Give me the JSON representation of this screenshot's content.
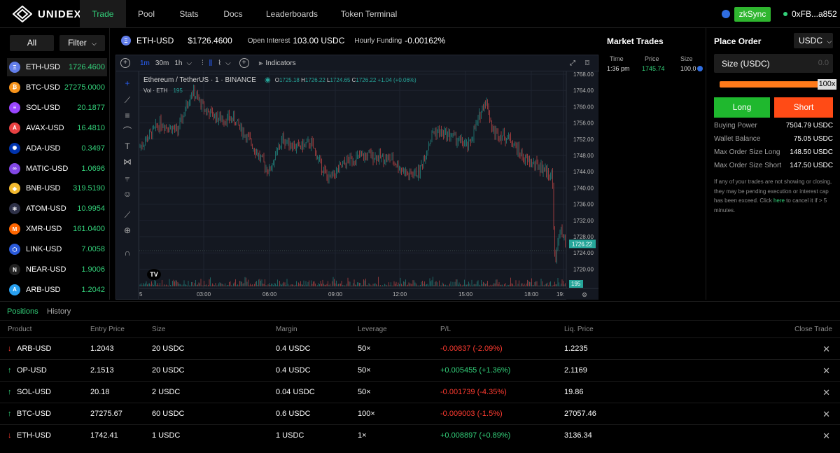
{
  "nav": {
    "brand": "UNIDEX",
    "items": [
      {
        "label": "Trade",
        "active": true
      },
      {
        "label": "Pool"
      },
      {
        "label": "Stats"
      },
      {
        "label": "Docs"
      },
      {
        "label": "Leaderboards"
      },
      {
        "label": "Token Terminal"
      }
    ],
    "network": "zkSync",
    "wallet": "0xFB...a852"
  },
  "sidebar": {
    "all_label": "All",
    "filter_label": "Filter",
    "markets": [
      {
        "name": "ETH-USD",
        "price": "1726.4600",
        "color": "#627eea",
        "sym": "Ξ"
      },
      {
        "name": "BTC-USD",
        "price": "27275.0000",
        "color": "#f7931a",
        "sym": "₿"
      },
      {
        "name": "SOL-USD",
        "price": "20.1877",
        "color": "#9945ff",
        "sym": "≡"
      },
      {
        "name": "AVAX-USD",
        "price": "16.4810",
        "color": "#e84142",
        "sym": "A"
      },
      {
        "name": "ADA-USD",
        "price": "0.3497",
        "color": "#0033ad",
        "sym": "✺"
      },
      {
        "name": "MATIC-USD",
        "price": "1.0696",
        "color": "#8247e5",
        "sym": "∞"
      },
      {
        "name": "BNB-USD",
        "price": "319.5190",
        "color": "#f3ba2f",
        "sym": "◆"
      },
      {
        "name": "ATOM-USD",
        "price": "10.9954",
        "color": "#2e3148",
        "sym": "⚛"
      },
      {
        "name": "XMR-USD",
        "price": "161.0400",
        "color": "#ff6600",
        "sym": "M"
      },
      {
        "name": "LINK-USD",
        "price": "7.0058",
        "color": "#2a5ada",
        "sym": "⬡"
      },
      {
        "name": "NEAR-USD",
        "price": "1.9006",
        "color": "#222222",
        "sym": "N"
      },
      {
        "name": "ARB-USD",
        "price": "1.2042",
        "color": "#28a0f0",
        "sym": "A"
      }
    ]
  },
  "ticker": {
    "pair": "ETH-USD",
    "price": "$1726.4600",
    "oi_label": "Open Interest",
    "oi_value": "103.00 USDC",
    "funding_label": "Hourly Funding",
    "funding_value": "-0.00162%"
  },
  "chart": {
    "intervals": [
      "1m",
      "30m",
      "1h"
    ],
    "indicators_label": "Indicators",
    "legend_title": "Ethereum / TetherUS · 1 · BINANCE",
    "ohlc": {
      "o": "1725.18",
      "h": "1726.22",
      "l": "1724.65",
      "c": "1726.22",
      "chg": "+1.04 (+0.06%)"
    },
    "vol_label": "Vol · ETH",
    "vol_value": "195",
    "price_ticks": [
      "1768.00",
      "1764.00",
      "1760.00",
      "1756.00",
      "1752.00",
      "1748.00",
      "1744.00",
      "1740.00",
      "1736.00",
      "1732.00",
      "1728.00",
      "1724.00",
      "1720.00"
    ],
    "time_ticks": [
      "5",
      "03:00",
      "06:00",
      "09:00",
      "12:00",
      "15:00",
      "18:00",
      "19:"
    ],
    "current_price": "1726.22",
    "current_vol": "195",
    "up_color": "#26a69a",
    "down_color": "#ef5350"
  },
  "market_trades": {
    "title": "Market Trades",
    "headers": [
      "Time",
      "Price",
      "Size"
    ],
    "rows": [
      {
        "time": "1:36 pm",
        "price": "1745.74",
        "size": "100.0"
      }
    ]
  },
  "place_order": {
    "title": "Place Order",
    "currency": "USDC",
    "size_label": "Size (USDC)",
    "size_placeholder": "0.0",
    "leverage": "100x",
    "leverage_fraction": 1.0,
    "long_label": "Long",
    "short_label": "Short",
    "info": [
      {
        "k": "Buying Power",
        "v": "7504.79 USDC"
      },
      {
        "k": "Wallet Balance",
        "v": "75.05 USDC"
      },
      {
        "k": "Max Order Size Long",
        "v": "148.50 USDC"
      },
      {
        "k": "Max Order Size Short",
        "v": "147.50 USDC"
      }
    ],
    "note_before": "If any of your trades are not showing or closing, they may be pending execution or interest cap has been exceed. Click ",
    "note_link": "here",
    "note_after": " to cancel it if > 5 minutes."
  },
  "positions": {
    "tab_positions": "Positions",
    "tab_history": "History",
    "headers": [
      "Product",
      "Entry Price",
      "Size",
      "Margin",
      "Leverage",
      "P/L",
      "Liq. Price",
      "Close Trade"
    ],
    "rows": [
      {
        "dir": "down",
        "product": "ARB-USD",
        "entry": "1.2043",
        "size": "20 USDC",
        "margin": "0.4 USDC",
        "leverage": "50×",
        "pl": "-0.00837 (-2.09%)",
        "pl_pos": false,
        "liq": "1.2235"
      },
      {
        "dir": "up",
        "product": "OP-USD",
        "entry": "2.1513",
        "size": "20 USDC",
        "margin": "0.4 USDC",
        "leverage": "50×",
        "pl": "+0.005455 (+1.36%)",
        "pl_pos": true,
        "liq": "2.1169"
      },
      {
        "dir": "up",
        "product": "SOL-USD",
        "entry": "20.18",
        "size": "2 USDC",
        "margin": "0.04 USDC",
        "leverage": "50×",
        "pl": "-0.001739 (-4.35%)",
        "pl_pos": false,
        "liq": "19.86"
      },
      {
        "dir": "up",
        "product": "BTC-USD",
        "entry": "27275.67",
        "size": "60 USDC",
        "margin": "0.6 USDC",
        "leverage": "100×",
        "pl": "-0.009003 (-1.5%)",
        "pl_pos": false,
        "liq": "27057.46"
      },
      {
        "dir": "down",
        "product": "ETH-USD",
        "entry": "1742.41",
        "size": "1 USDC",
        "margin": "1 USDC",
        "leverage": "1×",
        "pl": "+0.008897 (+0.89%)",
        "pl_pos": true,
        "liq": "3136.34"
      }
    ]
  }
}
